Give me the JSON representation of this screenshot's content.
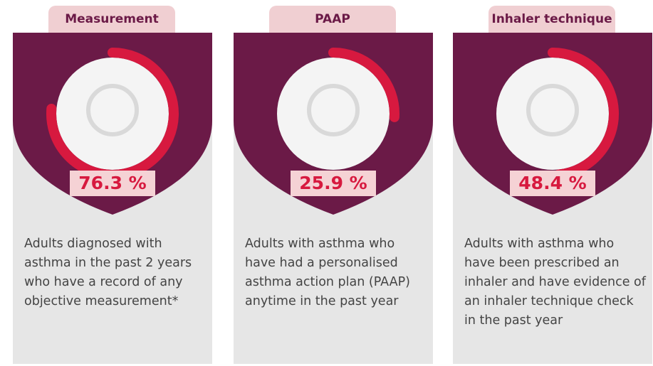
{
  "cards": [
    {
      "title": "Measurement",
      "value": {
        "value": 76.3,
        "label": "76.3 %"
      },
      "description": "Adults diagnosed with asthma in the past 2 years who have a record of any objective measurement*"
    },
    {
      "title": "PAAP",
      "value": {
        "value": 25.9,
        "label": "25.9 %"
      },
      "description": "Adults with asthma who have had a personalised asthma action plan (PAAP) anytime in the past year"
    },
    {
      "title": "Inhaler technique",
      "value": {
        "value": 48.4,
        "label": "48.4 %"
      },
      "description": "Adults with asthma who have been prescribed an inhaler and have evidence of an inhaler technique check in the past year"
    }
  ]
}
